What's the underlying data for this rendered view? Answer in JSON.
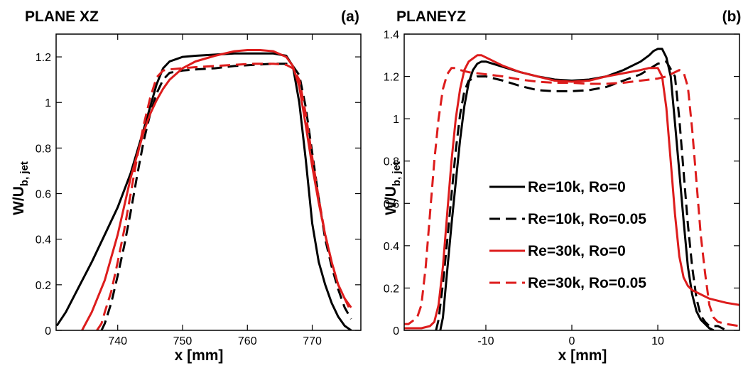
{
  "chart_data": [
    {
      "type": "line",
      "title": "PLANE XZ",
      "panel_label": "(a)",
      "xlabel": "x [mm]",
      "ylabel_main": "W/U",
      "ylabel_sub": "b, jet",
      "xlim": [
        730.5,
        777.5
      ],
      "ylim": [
        0,
        1.3
      ],
      "xticks": [
        740,
        750,
        760,
        770
      ],
      "xtick_labels": [
        "740",
        "750",
        "760",
        "770"
      ],
      "yticks": [
        0,
        0.2,
        0.4,
        0.6,
        0.8,
        1,
        1.2
      ],
      "ytick_labels": [
        "0",
        "0.2",
        "0.4",
        "0.6",
        "0.8",
        "1",
        "1.2"
      ],
      "grid": false,
      "series": [
        {
          "name": "Re=10k, Ro=0",
          "color": "#000000",
          "dash": "solid",
          "x": [
            730.6,
            732,
            734,
            736,
            738,
            740,
            742,
            744,
            746,
            747,
            748,
            749,
            750,
            752,
            755,
            758,
            761,
            764,
            766,
            767,
            768,
            769,
            770,
            771,
            772,
            773,
            774,
            775,
            776
          ],
          "y": [
            0.02,
            0.08,
            0.19,
            0.3,
            0.42,
            0.54,
            0.69,
            0.88,
            1.08,
            1.15,
            1.18,
            1.19,
            1.2,
            1.205,
            1.21,
            1.215,
            1.215,
            1.215,
            1.205,
            1.16,
            1.0,
            0.75,
            0.47,
            0.3,
            0.2,
            0.12,
            0.06,
            0.02,
            0.0
          ]
        },
        {
          "name": "Re=10k, Ro=0.05",
          "color": "#000000",
          "dash": "dashed",
          "x": [
            737.5,
            738,
            739,
            740,
            741,
            742,
            743,
            744,
            745,
            746,
            747,
            748,
            750,
            752,
            755,
            758,
            761,
            764,
            766,
            767,
            768,
            769,
            770,
            771,
            772,
            773,
            774,
            775,
            776
          ],
          "y": [
            0.0,
            0.03,
            0.12,
            0.24,
            0.37,
            0.52,
            0.68,
            0.83,
            0.95,
            1.04,
            1.1,
            1.13,
            1.14,
            1.145,
            1.15,
            1.16,
            1.165,
            1.17,
            1.17,
            1.16,
            1.12,
            0.98,
            0.78,
            0.58,
            0.4,
            0.28,
            0.18,
            0.1,
            0.05
          ]
        },
        {
          "name": "Re=30k, Ro=0",
          "color": "#dd1c1c",
          "dash": "solid",
          "x": [
            734.5,
            736,
            738,
            740,
            742,
            744,
            745,
            746,
            747,
            748,
            750,
            752,
            755,
            758,
            760,
            762,
            764,
            766,
            767,
            768,
            769,
            770,
            771,
            772,
            773,
            774,
            775,
            776
          ],
          "y": [
            0.0,
            0.08,
            0.22,
            0.42,
            0.67,
            0.87,
            0.95,
            1.01,
            1.06,
            1.1,
            1.15,
            1.18,
            1.205,
            1.225,
            1.23,
            1.23,
            1.225,
            1.2,
            1.16,
            1.07,
            0.9,
            0.72,
            0.56,
            0.42,
            0.3,
            0.2,
            0.14,
            0.1
          ]
        },
        {
          "name": "Re=30k, Ro=0.05",
          "color": "#dd1c1c",
          "dash": "dashed",
          "x": [
            736.8,
            737.5,
            738,
            739,
            740,
            741,
            742,
            743,
            744,
            745,
            746,
            747,
            748,
            750,
            752,
            755,
            758,
            761,
            764,
            766,
            767,
            768,
            769,
            770,
            771,
            772,
            773,
            774,
            775,
            776
          ],
          "y": [
            0.0,
            0.03,
            0.08,
            0.17,
            0.3,
            0.44,
            0.6,
            0.76,
            0.9,
            1.02,
            1.11,
            1.14,
            1.145,
            1.15,
            1.155,
            1.16,
            1.165,
            1.17,
            1.17,
            1.165,
            1.15,
            1.1,
            0.95,
            0.76,
            0.58,
            0.42,
            0.3,
            0.2,
            0.14,
            0.08
          ]
        }
      ]
    },
    {
      "type": "line",
      "title": "PLANEYZ",
      "panel_label": "(b)",
      "xlabel": "x [mm]",
      "ylabel_main": "W/U",
      "ylabel_sub": "b, jet",
      "xlim": [
        -19.5,
        19.5
      ],
      "ylim": [
        0,
        1.4
      ],
      "xticks": [
        -10,
        0,
        10
      ],
      "xtick_labels": [
        "-10",
        "0",
        "10"
      ],
      "yticks": [
        0,
        0.2,
        0.4,
        0.6,
        0.8,
        1,
        1.2,
        1.4
      ],
      "ytick_labels": [
        "0",
        "0.2",
        "0.4",
        "0.6",
        "0.8",
        "1",
        "1.2",
        "1.4"
      ],
      "grid": false,
      "legend_position": "center-left",
      "series": [
        {
          "name": "Re=10k, Ro=0",
          "color": "#000000",
          "dash": "solid",
          "x": [
            -15.3,
            -15,
            -14.5,
            -14,
            -13.5,
            -13,
            -12.5,
            -12,
            -11.5,
            -11,
            -10.5,
            -10,
            -8,
            -6,
            -4,
            -2,
            0,
            2,
            4,
            6,
            8,
            9,
            9.5,
            10,
            10.5,
            11,
            11.5,
            12,
            12.5,
            13,
            13.5,
            14,
            14.5,
            15,
            15.5,
            16,
            16.5
          ],
          "y": [
            0.0,
            0.06,
            0.28,
            0.5,
            0.7,
            0.9,
            1.06,
            1.17,
            1.23,
            1.26,
            1.27,
            1.27,
            1.245,
            1.22,
            1.2,
            1.185,
            1.18,
            1.185,
            1.2,
            1.23,
            1.27,
            1.3,
            1.32,
            1.33,
            1.33,
            1.29,
            1.2,
            0.98,
            0.75,
            0.52,
            0.3,
            0.17,
            0.09,
            0.05,
            0.03,
            0.01,
            0.0
          ]
        },
        {
          "name": "Re=10k, Ro=0.05",
          "color": "#000000",
          "dash": "dashed",
          "x": [
            -15.8,
            -15.5,
            -15,
            -14.5,
            -14,
            -13.5,
            -13,
            -12.5,
            -12,
            -11,
            -10,
            -8,
            -6,
            -4,
            -2,
            0,
            2,
            4,
            6,
            8,
            10,
            11,
            12,
            12.5,
            13,
            13.5,
            14,
            14.5,
            15,
            15.5,
            16,
            17,
            18
          ],
          "y": [
            0.0,
            0.05,
            0.22,
            0.42,
            0.64,
            0.85,
            1.02,
            1.13,
            1.18,
            1.2,
            1.2,
            1.18,
            1.155,
            1.135,
            1.13,
            1.13,
            1.135,
            1.15,
            1.18,
            1.21,
            1.26,
            1.27,
            1.2,
            1.0,
            0.75,
            0.5,
            0.3,
            0.15,
            0.07,
            0.04,
            0.02,
            0.02,
            0.0
          ]
        },
        {
          "name": "Re=30k, Ro=0",
          "color": "#dd1c1c",
          "dash": "solid",
          "x": [
            -19.5,
            -17.5,
            -16.5,
            -16,
            -15.5,
            -15,
            -14.5,
            -14,
            -13.5,
            -13,
            -12.5,
            -12,
            -11,
            -10.5,
            -10,
            -8,
            -6,
            -4,
            -2,
            0,
            2,
            4,
            6,
            8,
            9,
            10,
            10.5,
            11,
            11.5,
            12,
            12.5,
            13,
            13.5,
            14,
            15,
            16,
            17,
            18,
            19.5
          ],
          "y": [
            0.01,
            0.01,
            0.02,
            0.04,
            0.12,
            0.3,
            0.55,
            0.8,
            1.0,
            1.14,
            1.23,
            1.27,
            1.3,
            1.3,
            1.29,
            1.25,
            1.22,
            1.2,
            1.18,
            1.175,
            1.18,
            1.2,
            1.215,
            1.23,
            1.24,
            1.24,
            1.2,
            1.05,
            0.8,
            0.55,
            0.35,
            0.25,
            0.21,
            0.19,
            0.17,
            0.15,
            0.14,
            0.13,
            0.12
          ]
        },
        {
          "name": "Re=30k, Ro=0.05",
          "color": "#dd1c1c",
          "dash": "dashed",
          "x": [
            -19.5,
            -19,
            -18,
            -17.5,
            -17,
            -16.5,
            -16,
            -15.5,
            -15,
            -14.5,
            -14,
            -13.5,
            -13,
            -12,
            -10,
            -8,
            -6,
            -4,
            -2,
            0,
            2,
            4,
            6,
            8,
            10,
            11,
            12,
            12.5,
            13,
            13.5,
            14,
            14.5,
            15,
            15.5,
            16,
            16.5,
            17,
            18,
            19.5
          ],
          "y": [
            0.03,
            0.03,
            0.06,
            0.12,
            0.3,
            0.55,
            0.8,
            1.0,
            1.14,
            1.21,
            1.24,
            1.24,
            1.23,
            1.22,
            1.21,
            1.2,
            1.185,
            1.175,
            1.17,
            1.17,
            1.165,
            1.165,
            1.17,
            1.18,
            1.19,
            1.2,
            1.22,
            1.23,
            1.22,
            1.15,
            0.95,
            0.7,
            0.45,
            0.27,
            0.12,
            0.06,
            0.04,
            0.03,
            0.02
          ]
        }
      ]
    }
  ]
}
